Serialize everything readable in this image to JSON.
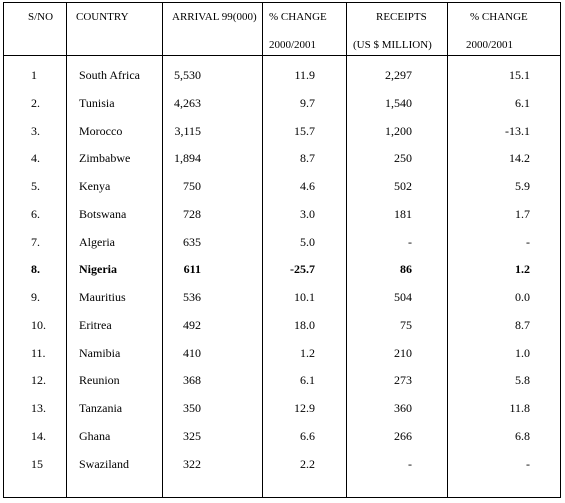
{
  "headers": {
    "sno": "S/NO",
    "country": "COUNTRY",
    "arrival": "ARRIVAL 99(000)",
    "change1_line1": "% CHANGE",
    "change1_line2": "2000/2001",
    "receipts_line1": "RECEIPTS",
    "receipts_line2": "(US $ MILLION)",
    "change2_line1": "% CHANGE",
    "change2_line2": "2000/2001"
  },
  "rows": [
    {
      "sno": "1",
      "country": "South Africa",
      "arrival": "5,530",
      "change1": "11.9",
      "receipts": "2,297",
      "change2": "15.1"
    },
    {
      "sno": "2.",
      "country": "Tunisia",
      "arrival": "4,263",
      "change1": "9.7",
      "receipts": "1,540",
      "change2": "6.1"
    },
    {
      "sno": "3.",
      "country": "Morocco",
      "arrival": "3,115",
      "change1": "15.7",
      "receipts": "1,200",
      "change2": "-13.1"
    },
    {
      "sno": "4.",
      "country": "Zimbabwe",
      "arrival": "1,894",
      "change1": "8.7",
      "receipts": "250",
      "change2": "14.2"
    },
    {
      "sno": "5.",
      "country": "Kenya",
      "arrival": "750",
      "change1": "4.6",
      "receipts": "502",
      "change2": "5.9"
    },
    {
      "sno": "6.",
      "country": "Botswana",
      "arrival": "728",
      "change1": "3.0",
      "receipts": "181",
      "change2": "1.7"
    },
    {
      "sno": "7.",
      "country": "Algeria",
      "arrival": "635",
      "change1": "5.0",
      "receipts": "-",
      "change2": "-"
    },
    {
      "sno": "8.",
      "country": "Nigeria",
      "arrival": "611",
      "change1": "-25.7",
      "receipts": "86",
      "change2": "1.2",
      "bold": true
    },
    {
      "sno": "9.",
      "country": "Mauritius",
      "arrival": "536",
      "change1": "10.1",
      "receipts": "504",
      "change2": "0.0"
    },
    {
      "sno": "10.",
      "country": "Eritrea",
      "arrival": "492",
      "change1": "18.0",
      "receipts": "75",
      "change2": "8.7"
    },
    {
      "sno": "11.",
      "country": "Namibia",
      "arrival": "410",
      "change1": "1.2",
      "receipts": "210",
      "change2": "1.0"
    },
    {
      "sno": "12.",
      "country": "Reunion",
      "arrival": "368",
      "change1": "6.1",
      "receipts": "273",
      "change2": "5.8"
    },
    {
      "sno": "13.",
      "country": "Tanzania",
      "arrival": "350",
      "change1": "12.9",
      "receipts": "360",
      "change2": "11.8"
    },
    {
      "sno": "14.",
      "country": "Ghana",
      "arrival": "325",
      "change1": "6.6",
      "receipts": "266",
      "change2": "6.8"
    },
    {
      "sno": "15",
      "country": "Swaziland",
      "arrival": "322",
      "change1": "2.2",
      "receipts": "-",
      "change2": "-"
    }
  ]
}
